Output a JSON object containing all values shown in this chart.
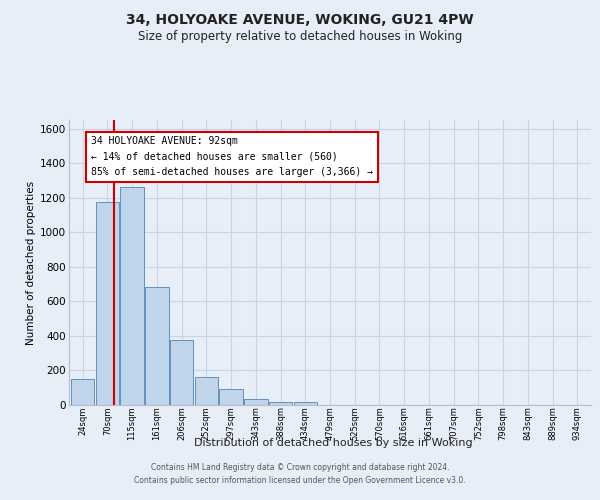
{
  "title": "34, HOLYOAKE AVENUE, WOKING, GU21 4PW",
  "subtitle": "Size of property relative to detached houses in Woking",
  "xlabel": "Distribution of detached houses by size in Woking",
  "ylabel": "Number of detached properties",
  "bin_labels": [
    "24sqm",
    "70sqm",
    "115sqm",
    "161sqm",
    "206sqm",
    "252sqm",
    "297sqm",
    "343sqm",
    "388sqm",
    "434sqm",
    "479sqm",
    "525sqm",
    "570sqm",
    "616sqm",
    "661sqm",
    "707sqm",
    "752sqm",
    "798sqm",
    "843sqm",
    "889sqm",
    "934sqm"
  ],
  "bar_values": [
    150,
    1175,
    1260,
    685,
    375,
    165,
    90,
    35,
    20,
    15,
    0,
    0,
    0,
    0,
    0,
    0,
    0,
    0,
    0,
    0,
    0
  ],
  "bar_color": "#c0d4ea",
  "bar_edge_color": "#6090c0",
  "property_line_x": 1.27,
  "property_line_color": "#cc0000",
  "ylim": [
    0,
    1650
  ],
  "yticks": [
    0,
    200,
    400,
    600,
    800,
    1000,
    1200,
    1400,
    1600
  ],
  "annotation_line1": "34 HOLYOAKE AVENUE: 92sqm",
  "annotation_line2": "← 14% of detached houses are smaller (560)",
  "annotation_line3": "85% of semi-detached houses are larger (3,366) →",
  "annotation_box_facecolor": "#ffffff",
  "annotation_box_edgecolor": "#cc0000",
  "grid_color": "#c8d4e4",
  "bg_color": "#e8eef8",
  "title_fontsize": 10,
  "subtitle_fontsize": 8.5,
  "footer_line1": "Contains HM Land Registry data © Crown copyright and database right 2024.",
  "footer_line2": "Contains public sector information licensed under the Open Government Licence v3.0."
}
